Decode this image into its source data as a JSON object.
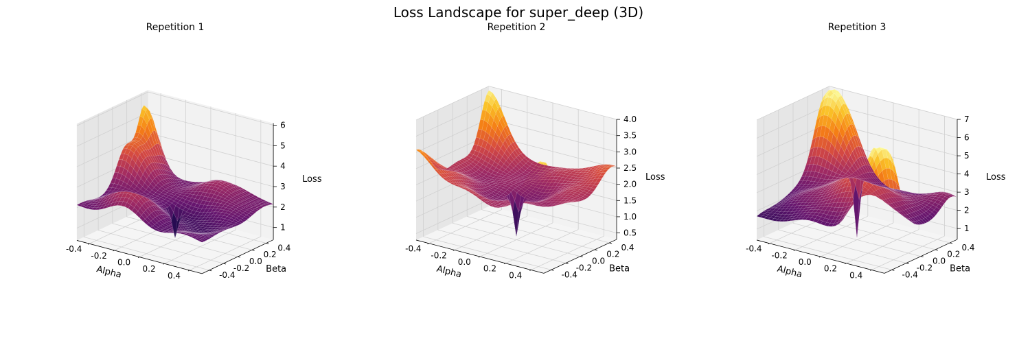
{
  "figure": {
    "title": "Loss Landscape for super_deep (3D)"
  },
  "colors": {
    "pane": "#f2f2f2",
    "pane_side": "#e6e6e6",
    "pane_floor": "#f5f5f5",
    "grid": "#d0d0d0",
    "axis": "#000000",
    "surface_edge": "#ffffff"
  },
  "colormap": "inferno",
  "chart_data": [
    {
      "type": "surface3d",
      "title": "Repetition 1",
      "xlabel": "Alpha",
      "ylabel": "Beta",
      "zlabel": "Loss",
      "x_range": [
        -0.5,
        0.5
      ],
      "y_range": [
        -0.5,
        0.5
      ],
      "zlim": [
        0.4,
        6.1
      ],
      "x_ticks": [
        "-0.4",
        "-0.2",
        "0.0",
        "0.2",
        "0.4"
      ],
      "y_ticks": [
        "-0.4",
        "-0.2",
        "0.0",
        "0.2",
        "0.4"
      ],
      "z_ticks": [
        "1",
        "2",
        "3",
        "4",
        "5",
        "6"
      ],
      "grid": true,
      "min_value": 0.5,
      "min_location": [
        0.0,
        0.0
      ],
      "base_value": 2.0,
      "features": [
        {
          "x": -0.5,
          "y": 0.45,
          "height": 3.2,
          "spread": 0.09
        },
        {
          "x": -0.45,
          "y": 0.2,
          "height": 2.0,
          "spread": 0.13
        },
        {
          "x": -0.15,
          "y": -0.3,
          "height": 1.5,
          "spread": 0.15
        },
        {
          "x": 0.15,
          "y": 0.35,
          "height": 0.8,
          "spread": 0.2
        },
        {
          "x": 0.1,
          "y": -0.1,
          "height": -0.6,
          "spread": 0.2
        }
      ]
    },
    {
      "type": "surface3d",
      "title": "Repetition 2",
      "xlabel": "Alpha",
      "ylabel": "Beta",
      "zlabel": "Loss",
      "x_range": [
        -0.5,
        0.5
      ],
      "y_range": [
        -0.5,
        0.5
      ],
      "zlim": [
        0.3,
        4.0
      ],
      "x_ticks": [
        "-0.4",
        "-0.2",
        "0.0",
        "0.2",
        "0.4"
      ],
      "y_ticks": [
        "-0.4",
        "-0.2",
        "0.0",
        "0.2",
        "0.4"
      ],
      "z_ticks": [
        "0.5",
        "1.0",
        "1.5",
        "2.0",
        "2.5",
        "3.0",
        "3.5",
        "4.0"
      ],
      "grid": true,
      "min_value": 0.4,
      "min_location": [
        0.0,
        0.0
      ],
      "base_value": 2.1,
      "features": [
        {
          "x": -0.5,
          "y": 0.5,
          "height": 1.8,
          "spread": 0.12
        },
        {
          "x": 0.5,
          "y": -0.5,
          "height": 1.7,
          "spread": 0.12
        },
        {
          "x": -0.5,
          "y": -0.5,
          "height": 0.9,
          "spread": 0.18
        },
        {
          "x": 0.45,
          "y": 0.45,
          "height": 0.5,
          "spread": 0.15
        },
        {
          "x": 0.0,
          "y": 0.0,
          "height": -0.5,
          "spread": 0.25
        }
      ]
    },
    {
      "type": "surface3d",
      "title": "Repetition 3",
      "xlabel": "Alpha",
      "ylabel": "Beta",
      "zlabel": "Loss",
      "x_range": [
        -0.5,
        0.5
      ],
      "y_range": [
        -0.5,
        0.5
      ],
      "zlim": [
        0.4,
        7.0
      ],
      "x_ticks": [
        "-0.4",
        "-0.2",
        "0.0",
        "0.2",
        "0.4"
      ],
      "y_ticks": [
        "-0.4",
        "-0.2",
        "0.0",
        "0.2",
        "0.4"
      ],
      "z_ticks": [
        "1",
        "2",
        "3",
        "4",
        "5",
        "6",
        "7"
      ],
      "grid": true,
      "min_value": 0.5,
      "min_location": [
        0.0,
        0.0
      ],
      "base_value": 1.2,
      "features": [
        {
          "x": -0.45,
          "y": 0.45,
          "height": 5.3,
          "spread": 0.16
        },
        {
          "x": 0.45,
          "y": -0.45,
          "height": 5.6,
          "spread": 0.14
        },
        {
          "x": 0.0,
          "y": 0.0,
          "height": 2.0,
          "spread": 0.4
        },
        {
          "x": 0.1,
          "y": -0.1,
          "height": 1.4,
          "spread": 0.15
        },
        {
          "x": 0.45,
          "y": 0.45,
          "height": 1.2,
          "spread": 0.15
        }
      ]
    }
  ]
}
